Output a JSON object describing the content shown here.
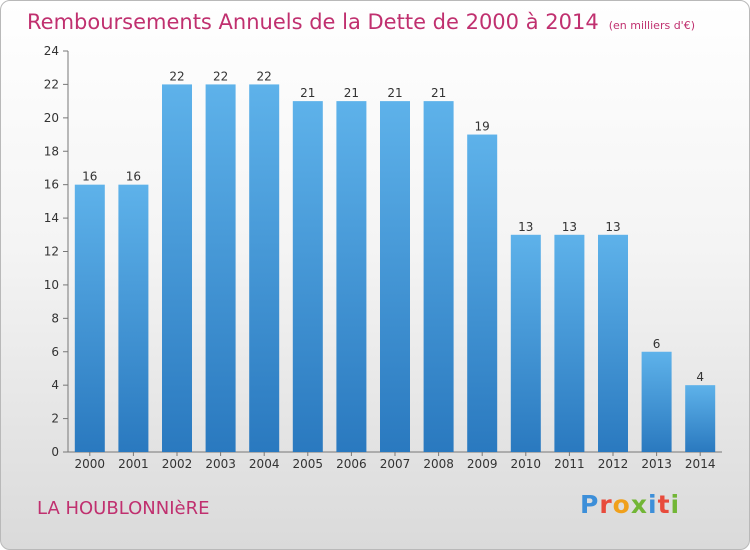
{
  "header": {
    "title": "Remboursements Annuels de la Dette de 2000 à 2014",
    "subtitle": "(en milliers d'€)"
  },
  "footer": {
    "place": "LA HOUBLONNIèRE",
    "logo": "Proxiti"
  },
  "colors": {
    "bar_light": "#5eb2ea",
    "bar_dark": "#2a79bf",
    "title": "#c0306f"
  },
  "logo_letter_colors": [
    "#3d8fd9",
    "#e84b3c",
    "#f0a01c",
    "#72b636",
    "#3d8fd9",
    "#e84b3c",
    "#72b636"
  ],
  "chart_data": {
    "type": "bar",
    "categories": [
      "2000",
      "2001",
      "2002",
      "2003",
      "2004",
      "2005",
      "2006",
      "2007",
      "2008",
      "2009",
      "2010",
      "2011",
      "2012",
      "2013",
      "2014"
    ],
    "values": [
      16,
      16,
      22,
      22,
      22,
      21,
      21,
      21,
      21,
      19,
      13,
      13,
      13,
      6,
      4
    ],
    "ylim": [
      0,
      24
    ],
    "yticks": [
      0,
      2,
      4,
      6,
      8,
      10,
      12,
      14,
      16,
      18,
      20,
      22,
      24
    ],
    "grid": false,
    "legend": "none"
  }
}
